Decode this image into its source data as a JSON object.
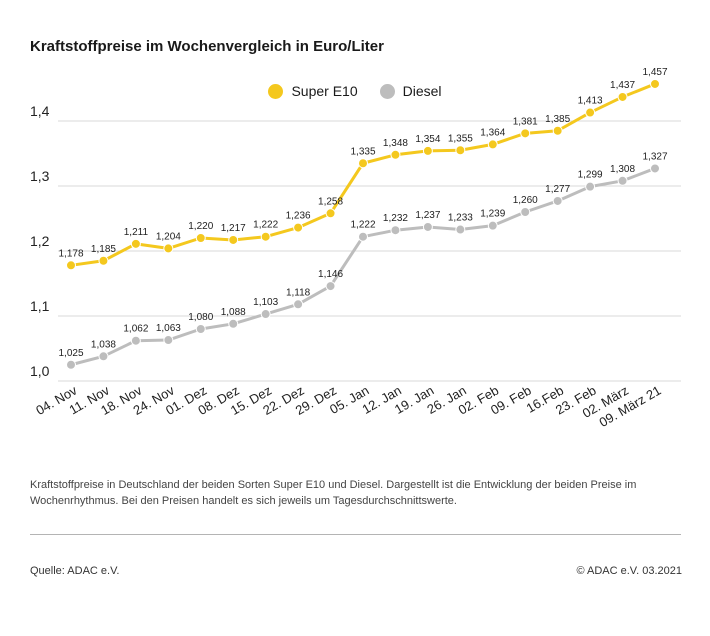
{
  "title": "Kraftstoffpreise im Wochenvergleich in Euro/Liter",
  "note": "Kraftstoffpreise in Deutschland der beiden Sorten Super E10 und Diesel. Dargestellt ist die Entwicklung der beiden Preise im Wochenrhythmus. Bei den Preisen handelt es sich jeweils um Tagesdurchschnittswerte.",
  "source": "Quelle: ADAC e.V.",
  "copyright": "© ADAC e.V. 03.2021",
  "colors": {
    "super": "#f4c81e",
    "diesel": "#bdbdbd",
    "grid": "#d9d9d9"
  },
  "chart_data": {
    "type": "line",
    "title": "Kraftstoffpreise im Wochenvergleich in Euro/Liter",
    "xlabel": "",
    "ylabel": "",
    "ylim": [
      1.0,
      1.4
    ],
    "yticks": [
      "1,0",
      "1,1",
      "1,2",
      "1,3",
      "1,4"
    ],
    "grid": true,
    "legend_position": "top-center",
    "categories": [
      "04. Nov",
      "11. Nov",
      "18. Nov",
      "24. Nov",
      "01. Dez",
      "08. Dez",
      "15. Dez",
      "22. Dez",
      "29. Dez",
      "05. Jan",
      "12. Jan",
      "19. Jan",
      "26. Jan",
      "02. Feb",
      "09. Feb",
      "16.Feb",
      "23. Feb",
      "02. März",
      "09. März 21"
    ],
    "series": [
      {
        "name": "Super E10",
        "values": [
          1.178,
          1.185,
          1.211,
          1.204,
          1.22,
          1.217,
          1.222,
          1.236,
          1.258,
          1.335,
          1.348,
          1.354,
          1.355,
          1.364,
          1.381,
          1.385,
          1.413,
          1.437,
          1.457
        ],
        "labels": [
          "1,178",
          "1,185",
          "1,211",
          "1,204",
          "1,220",
          "1,217",
          "1,222",
          "1,236",
          "1,258",
          "1,335",
          "1,348",
          "1,354",
          "1,355",
          "1,364",
          "1,381",
          "1,385",
          "1,413",
          "1,437",
          "1,457"
        ]
      },
      {
        "name": "Diesel",
        "values": [
          1.025,
          1.038,
          1.062,
          1.063,
          1.08,
          1.088,
          1.103,
          1.118,
          1.146,
          1.222,
          1.232,
          1.237,
          1.233,
          1.239,
          1.26,
          1.277,
          1.299,
          1.308,
          1.327
        ],
        "labels": [
          "1,025",
          "1,038",
          "1,062",
          "1,063",
          "1,080",
          "1,088",
          "1,103",
          "1,118",
          "1,146",
          "1,222",
          "1,232",
          "1,237",
          "1,233",
          "1,239",
          "1,260",
          "1,277",
          "1,299",
          "1,308",
          "1,327"
        ]
      }
    ]
  }
}
